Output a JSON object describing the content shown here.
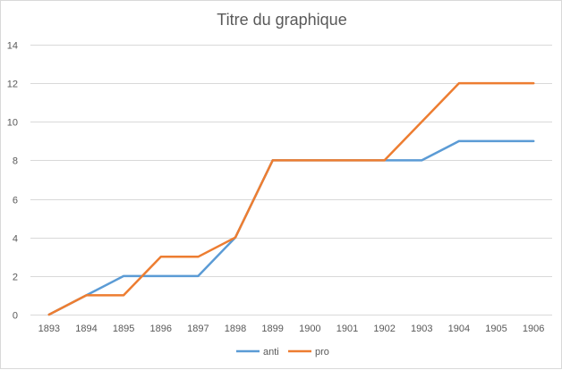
{
  "chart_data": {
    "type": "line",
    "title": "Titre du graphique",
    "xlabel": "",
    "ylabel": "",
    "x": [
      "1893",
      "1894",
      "1895",
      "1896",
      "1897",
      "1898",
      "1899",
      "1900",
      "1901",
      "1902",
      "1903",
      "1904",
      "1905",
      "1906"
    ],
    "ylim": [
      0,
      14
    ],
    "yticks": [
      0,
      2,
      4,
      6,
      8,
      10,
      12,
      14
    ],
    "grid": true,
    "legend_position": "bottom",
    "series": [
      {
        "name": "anti",
        "color": "#5B9BD5",
        "values": [
          0,
          1,
          2,
          2,
          2,
          4,
          8,
          8,
          8,
          8,
          8,
          9,
          9,
          9
        ]
      },
      {
        "name": "pro",
        "color": "#ED7D31",
        "values": [
          0,
          1,
          1,
          3,
          3,
          4,
          8,
          8,
          8,
          8,
          10,
          12,
          12,
          12
        ]
      }
    ]
  }
}
